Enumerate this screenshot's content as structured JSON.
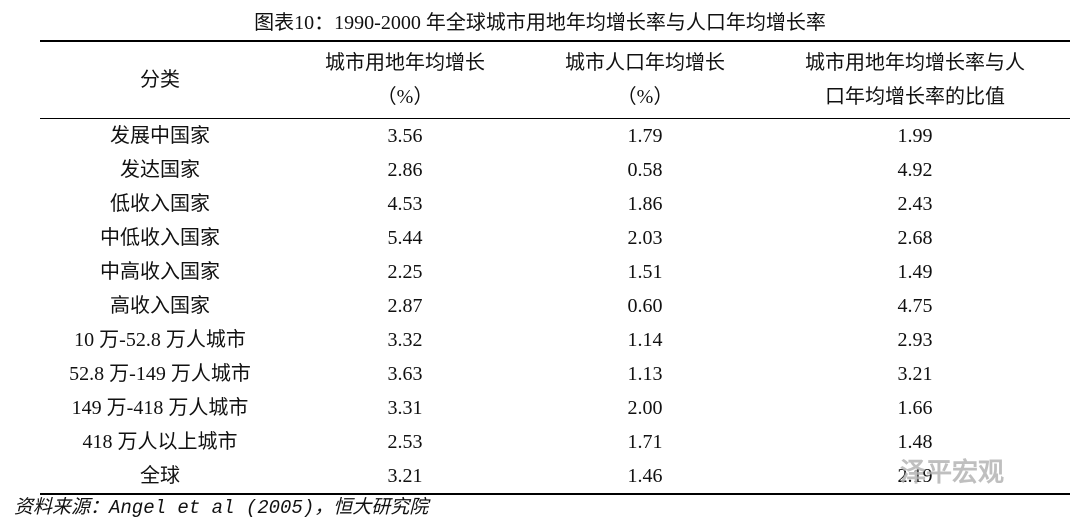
{
  "title": "图表10：1990-2000 年全球城市用地年均增长率与人口年均增长率",
  "table": {
    "headers": [
      [
        "分类"
      ],
      [
        "城市用地年均增长",
        "（%）"
      ],
      [
        "城市人口年均增长",
        "（%）"
      ],
      [
        "城市用地年均增长率与人",
        "口年均增长率的比值"
      ]
    ],
    "rows": [
      [
        "发展中国家",
        "3.56",
        "1.79",
        "1.99"
      ],
      [
        "发达国家",
        "2.86",
        "0.58",
        "4.92"
      ],
      [
        "低收入国家",
        "4.53",
        "1.86",
        "2.43"
      ],
      [
        "中低收入国家",
        "5.44",
        "2.03",
        "2.68"
      ],
      [
        "中高收入国家",
        "2.25",
        "1.51",
        "1.49"
      ],
      [
        "高收入国家",
        "2.87",
        "0.60",
        "4.75"
      ],
      [
        "10 万-52.8 万人城市",
        "3.32",
        "1.14",
        "2.93"
      ],
      [
        "52.8 万-149 万人城市",
        "3.63",
        "1.13",
        "3.21"
      ],
      [
        "149 万-418 万人城市",
        "3.31",
        "2.00",
        "1.66"
      ],
      [
        "418 万人以上城市",
        "2.53",
        "1.71",
        "1.48"
      ],
      [
        "全球",
        "3.21",
        "1.46",
        "2.19"
      ]
    ]
  },
  "source": "资料来源：Angel et al (2005)，恒大研究院",
  "watermark": "泽平宏观"
}
